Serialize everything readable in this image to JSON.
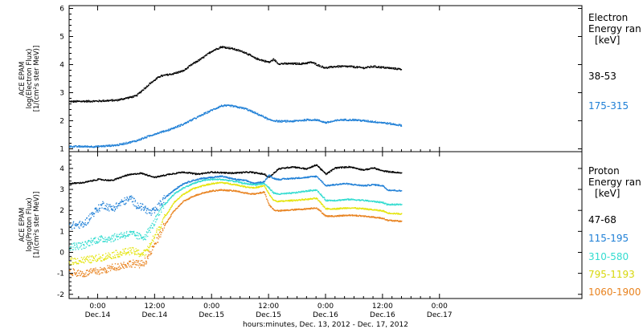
{
  "chart_data": {
    "type": "scatter",
    "x_axis": {
      "xlabel": "hours:minutes, Dec. 13, 2012 - Dec. 17, 2012",
      "range_hours": [
        -6,
        102
      ],
      "ticks": [
        {
          "h": 0,
          "time": "0:00",
          "date": "Dec.14"
        },
        {
          "h": 12,
          "time": "12:00",
          "date": "Dec.14"
        },
        {
          "h": 24,
          "time": "0:00",
          "date": "Dec.15"
        },
        {
          "h": 36,
          "time": "12:00",
          "date": "Dec.15"
        },
        {
          "h": 48,
          "time": "0:00",
          "date": "Dec.16"
        },
        {
          "h": 60,
          "time": "12:00",
          "date": "Dec.16"
        },
        {
          "h": 72,
          "time": "0:00",
          "date": "Dec.17"
        }
      ]
    },
    "panels": [
      {
        "name": "electron",
        "ylabel": [
          "ACE EPAM",
          "log(Electron Flux)",
          "[1/(cm²s ster MeV)]"
        ],
        "ylim": [
          0.9,
          6.1
        ],
        "yticks": [
          "1",
          "2",
          "3",
          "4",
          "5",
          "6"
        ],
        "legend_title": [
          "Electron",
          "Energy ran",
          "[keV]"
        ],
        "series": [
          {
            "name": "38-53",
            "color": "#000000",
            "points": [
              [
                -6,
                2.7
              ],
              [
                0,
                2.72
              ],
              [
                4,
                2.75
              ],
              [
                8,
                2.9
              ],
              [
                11,
                3.35
              ],
              [
                13,
                3.6
              ],
              [
                16,
                3.7
              ],
              [
                18,
                3.8
              ],
              [
                20,
                4.05
              ],
              [
                22,
                4.25
              ],
              [
                24,
                4.5
              ],
              [
                26,
                4.65
              ],
              [
                28,
                4.6
              ],
              [
                31,
                4.45
              ],
              [
                33,
                4.25
              ],
              [
                35,
                4.15
              ],
              [
                36,
                4.1
              ],
              [
                37,
                4.2
              ],
              [
                38,
                4.05
              ],
              [
                40,
                4.05
              ],
              [
                43,
                4.05
              ],
              [
                45,
                4.1
              ],
              [
                47,
                3.95
              ],
              [
                48,
                3.9
              ],
              [
                50,
                3.95
              ],
              [
                53,
                3.95
              ],
              [
                56,
                3.9
              ],
              [
                58,
                3.95
              ],
              [
                61,
                3.9
              ],
              [
                64,
                3.85
              ]
            ]
          },
          {
            "name": "175-315",
            "color": "#1e7fd6",
            "points": [
              [
                -6,
                1.1
              ],
              [
                0,
                1.1
              ],
              [
                4,
                1.15
              ],
              [
                8,
                1.3
              ],
              [
                12,
                1.55
              ],
              [
                15,
                1.7
              ],
              [
                18,
                1.9
              ],
              [
                21,
                2.15
              ],
              [
                24,
                2.4
              ],
              [
                26,
                2.55
              ],
              [
                28,
                2.55
              ],
              [
                31,
                2.45
              ],
              [
                33,
                2.3
              ],
              [
                35,
                2.15
              ],
              [
                36,
                2.05
              ],
              [
                38,
                2.0
              ],
              [
                41,
                2.0
              ],
              [
                44,
                2.05
              ],
              [
                46,
                2.05
              ],
              [
                48,
                1.95
              ],
              [
                51,
                2.05
              ],
              [
                54,
                2.05
              ],
              [
                57,
                2.0
              ],
              [
                60,
                1.95
              ],
              [
                64,
                1.85
              ]
            ]
          }
        ]
      },
      {
        "name": "proton",
        "ylabel": [
          "ACE EPAM",
          "log(Proton Flux)",
          "[1/(cm²s ster MeV)]"
        ],
        "ylim": [
          -2.2,
          4.8
        ],
        "yticks": [
          "-2",
          "-1",
          "0",
          "1",
          "2",
          "3",
          "4"
        ],
        "legend_title": [
          "Proton",
          "Energy ran",
          "[keV]"
        ],
        "series": [
          {
            "name": "47-68",
            "color": "#000000",
            "points": [
              [
                -6,
                3.3
              ],
              [
                -3,
                3.35
              ],
              [
                0,
                3.5
              ],
              [
                3,
                3.45
              ],
              [
                6,
                3.7
              ],
              [
                9,
                3.8
              ],
              [
                12,
                3.6
              ],
              [
                15,
                3.75
              ],
              [
                18,
                3.85
              ],
              [
                21,
                3.75
              ],
              [
                24,
                3.85
              ],
              [
                28,
                3.8
              ],
              [
                32,
                3.85
              ],
              [
                35,
                3.75
              ],
              [
                36,
                3.6
              ],
              [
                38,
                4.0
              ],
              [
                41,
                4.1
              ],
              [
                44,
                4.0
              ],
              [
                46,
                4.2
              ],
              [
                48,
                3.75
              ],
              [
                50,
                4.05
              ],
              [
                53,
                4.1
              ],
              [
                56,
                3.95
              ],
              [
                58,
                4.05
              ],
              [
                60,
                3.9
              ],
              [
                64,
                3.8
              ]
            ]
          },
          {
            "name": "115-195",
            "color": "#1e7fd6",
            "points": [
              [
                -6,
                1.3
              ],
              [
                -3,
                1.35
              ],
              [
                -1,
                1.9
              ],
              [
                1,
                2.3
              ],
              [
                3,
                2.1
              ],
              [
                5,
                2.4
              ],
              [
                7,
                2.6
              ],
              [
                8,
                2.3
              ],
              [
                10,
                2.1
              ],
              [
                11,
                1.9
              ],
              [
                12,
                2.0
              ],
              [
                14,
                2.6
              ],
              [
                16,
                3.0
              ],
              [
                18,
                3.3
              ],
              [
                20,
                3.45
              ],
              [
                22,
                3.55
              ],
              [
                24,
                3.6
              ],
              [
                26,
                3.65
              ],
              [
                29,
                3.5
              ],
              [
                31,
                3.45
              ],
              [
                33,
                3.3
              ],
              [
                35,
                3.4
              ],
              [
                36,
                3.7
              ],
              [
                37,
                3.55
              ],
              [
                38,
                3.5
              ],
              [
                41,
                3.55
              ],
              [
                44,
                3.6
              ],
              [
                46,
                3.65
              ],
              [
                48,
                3.2
              ],
              [
                50,
                3.25
              ],
              [
                52,
                3.3
              ],
              [
                54,
                3.25
              ],
              [
                56,
                3.2
              ],
              [
                58,
                3.25
              ],
              [
                60,
                3.2
              ],
              [
                61,
                3.0
              ],
              [
                64,
                2.95
              ]
            ]
          },
          {
            "name": "310-580",
            "color": "#33dcd0",
            "points": [
              [
                -6,
                0.3
              ],
              [
                -3,
                0.35
              ],
              [
                -1,
                0.6
              ],
              [
                1,
                0.65
              ],
              [
                3,
                0.7
              ],
              [
                5,
                0.85
              ],
              [
                7,
                0.9
              ],
              [
                9,
                0.75
              ],
              [
                10,
                0.8
              ],
              [
                12,
                1.5
              ],
              [
                14,
                2.3
              ],
              [
                16,
                2.8
              ],
              [
                18,
                3.1
              ],
              [
                20,
                3.3
              ],
              [
                22,
                3.45
              ],
              [
                24,
                3.5
              ],
              [
                26,
                3.5
              ],
              [
                29,
                3.4
              ],
              [
                31,
                3.3
              ],
              [
                33,
                3.25
              ],
              [
                35,
                3.3
              ],
              [
                36,
                3.1
              ],
              [
                37,
                2.85
              ],
              [
                38,
                2.8
              ],
              [
                41,
                2.85
              ],
              [
                44,
                2.95
              ],
              [
                46,
                3.0
              ],
              [
                48,
                2.5
              ],
              [
                50,
                2.5
              ],
              [
                53,
                2.55
              ],
              [
                56,
                2.5
              ],
              [
                58,
                2.45
              ],
              [
                60,
                2.4
              ],
              [
                61,
                2.3
              ],
              [
                64,
                2.3
              ]
            ]
          },
          {
            "name": "795-1193",
            "color": "#e4e40a",
            "points": [
              [
                -6,
                -0.4
              ],
              [
                -3,
                -0.35
              ],
              [
                -1,
                -0.3
              ],
              [
                1,
                -0.2
              ],
              [
                3,
                -0.1
              ],
              [
                5,
                0.0
              ],
              [
                7,
                0.1
              ],
              [
                9,
                -0.05
              ],
              [
                10,
                0.0
              ],
              [
                12,
                0.8
              ],
              [
                14,
                1.7
              ],
              [
                16,
                2.4
              ],
              [
                18,
                2.8
              ],
              [
                20,
                3.05
              ],
              [
                22,
                3.2
              ],
              [
                24,
                3.3
              ],
              [
                26,
                3.35
              ],
              [
                29,
                3.25
              ],
              [
                31,
                3.15
              ],
              [
                33,
                3.1
              ],
              [
                35,
                3.2
              ],
              [
                36,
                2.8
              ],
              [
                37,
                2.5
              ],
              [
                38,
                2.45
              ],
              [
                41,
                2.5
              ],
              [
                44,
                2.55
              ],
              [
                46,
                2.6
              ],
              [
                48,
                2.1
              ],
              [
                50,
                2.1
              ],
              [
                53,
                2.15
              ],
              [
                56,
                2.1
              ],
              [
                58,
                2.05
              ],
              [
                60,
                2.0
              ],
              [
                61,
                1.9
              ],
              [
                64,
                1.85
              ]
            ]
          },
          {
            "name": "1060-1900",
            "color": "#e8821e",
            "points": [
              [
                -6,
                -0.9
              ],
              [
                -3,
                -1.0
              ],
              [
                -1,
                -0.9
              ],
              [
                1,
                -0.85
              ],
              [
                3,
                -0.7
              ],
              [
                5,
                -0.6
              ],
              [
                7,
                -0.5
              ],
              [
                9,
                -0.55
              ],
              [
                10,
                -0.4
              ],
              [
                12,
                0.4
              ],
              [
                14,
                1.3
              ],
              [
                16,
                2.0
              ],
              [
                18,
                2.45
              ],
              [
                20,
                2.7
              ],
              [
                22,
                2.85
              ],
              [
                24,
                2.95
              ],
              [
                26,
                3.0
              ],
              [
                29,
                2.95
              ],
              [
                31,
                2.85
              ],
              [
                33,
                2.8
              ],
              [
                35,
                2.9
              ],
              [
                36,
                2.3
              ],
              [
                37,
                2.05
              ],
              [
                38,
                2.0
              ],
              [
                41,
                2.05
              ],
              [
                44,
                2.1
              ],
              [
                46,
                2.15
              ],
              [
                48,
                1.75
              ],
              [
                50,
                1.75
              ],
              [
                53,
                1.8
              ],
              [
                56,
                1.75
              ],
              [
                58,
                1.7
              ],
              [
                60,
                1.65
              ],
              [
                61,
                1.55
              ],
              [
                64,
                1.5
              ]
            ]
          }
        ]
      }
    ]
  }
}
